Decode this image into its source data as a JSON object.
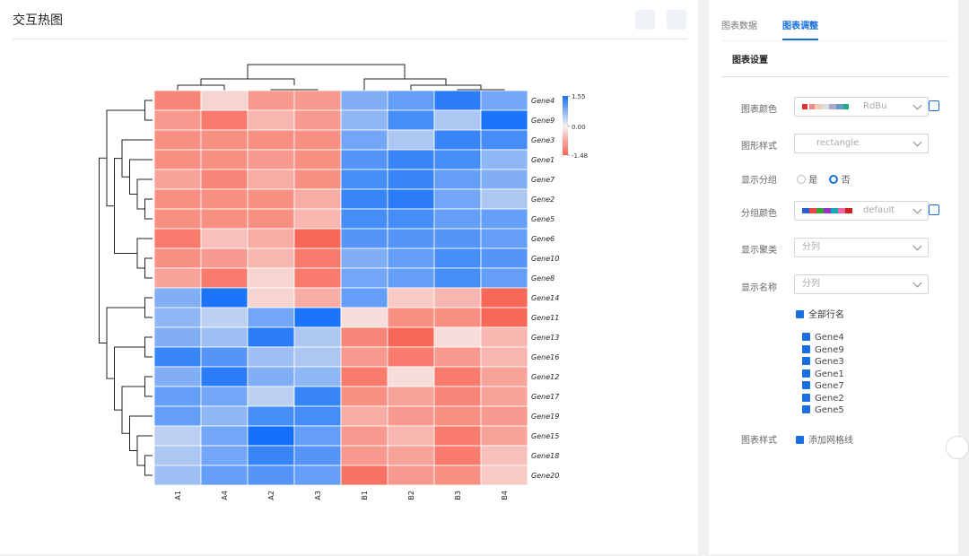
{
  "header": {
    "title": "交互热图"
  },
  "chart_data": {
    "type": "heatmap",
    "rows": [
      "Gene4",
      "Gene9",
      "Gene3",
      "Gene1",
      "Gene7",
      "Gene2",
      "Gene5",
      "Gene6",
      "Gene10",
      "Gene8",
      "Gene14",
      "Gene11",
      "Gene13",
      "Gene16",
      "Gene12",
      "Gene17",
      "Gene19",
      "Gene15",
      "Gene18",
      "Gene20"
    ],
    "columns": [
      "A1",
      "A4",
      "A2",
      "A3",
      "B1",
      "B2",
      "B3",
      "B4"
    ],
    "values": [
      [
        -1.1,
        -0.3,
        -0.9,
        -0.9,
        0.8,
        1.0,
        1.4,
        0.9
      ],
      [
        -0.9,
        -1.2,
        -0.6,
        -0.9,
        0.7,
        1.2,
        0.5,
        1.5
      ],
      [
        -1.0,
        -1.0,
        -1.0,
        -1.0,
        0.9,
        0.5,
        1.3,
        1.2
      ],
      [
        -1.0,
        -1.0,
        -0.9,
        -1.0,
        1.1,
        1.3,
        1.2,
        0.7
      ],
      [
        -0.8,
        -1.1,
        -0.7,
        -1.0,
        1.2,
        1.3,
        1.0,
        0.8
      ],
      [
        -1.0,
        -1.0,
        -1.0,
        -0.7,
        1.3,
        1.4,
        0.9,
        0.5
      ],
      [
        -1.0,
        -1.0,
        -1.0,
        -0.6,
        1.2,
        1.2,
        1.0,
        1.0
      ],
      [
        -1.2,
        -0.5,
        -0.7,
        -1.4,
        1.1,
        1.1,
        1.1,
        1.0
      ],
      [
        -1.0,
        -0.9,
        -0.6,
        -1.2,
        0.8,
        1.0,
        1.2,
        1.1
      ],
      [
        -0.8,
        -1.2,
        -0.3,
        -1.2,
        0.9,
        1.0,
        1.2,
        1.0
      ],
      [
        0.8,
        1.5,
        -0.3,
        -0.7,
        1.0,
        -0.4,
        -0.6,
        -1.4
      ],
      [
        0.7,
        0.4,
        0.9,
        1.5,
        -0.2,
        -1.0,
        -1.0,
        -1.4
      ],
      [
        0.8,
        0.6,
        1.4,
        0.5,
        -1.1,
        -1.4,
        -0.2,
        -0.6
      ],
      [
        1.3,
        1.1,
        0.6,
        0.5,
        -0.9,
        -1.2,
        -0.9,
        -0.6
      ],
      [
        0.8,
        1.4,
        0.8,
        0.7,
        -1.2,
        -0.2,
        -1.2,
        -0.8
      ],
      [
        1.0,
        0.9,
        0.4,
        1.3,
        -1.0,
        -0.8,
        -1.1,
        -0.8
      ],
      [
        1.0,
        0.7,
        1.2,
        1.2,
        -0.7,
        -0.9,
        -1.0,
        -0.9
      ],
      [
        0.4,
        0.9,
        1.55,
        1.0,
        -0.9,
        -0.6,
        -1.2,
        -0.8
      ],
      [
        0.5,
        0.9,
        1.3,
        1.1,
        -0.9,
        -0.8,
        -1.2,
        -0.5
      ],
      [
        0.6,
        1.0,
        1.1,
        1.0,
        -1.3,
        -0.9,
        -1.0,
        -0.4
      ]
    ],
    "zlim": [
      -1.48,
      1.55
    ],
    "zticks": [
      1.55,
      {
        "value": 0,
        "label": "0.00"
      },
      -1.48
    ],
    "colors": {
      "low": "#f8604f",
      "mid": "#f6f1f0",
      "high": "#1470fa"
    },
    "grid": true
  },
  "settings": {
    "tabs": [
      "图表数据",
      "图表调整"
    ],
    "section": "图表设置",
    "color": {
      "label": "图表颜色",
      "value": "RdBu"
    },
    "shape": {
      "label": "图形样式",
      "value": "rectangle"
    },
    "group": {
      "label": "显示分组",
      "options": [
        "是",
        "否"
      ]
    },
    "group_color": {
      "label": "分组颜色",
      "value": "default"
    },
    "cluster": {
      "label": "显示聚类",
      "value": "分列"
    },
    "names": {
      "label": "显示名称",
      "value": "分列"
    },
    "all_rows": "全部行名",
    "style": {
      "label": "图表样式",
      "option": "添加网格线"
    }
  }
}
